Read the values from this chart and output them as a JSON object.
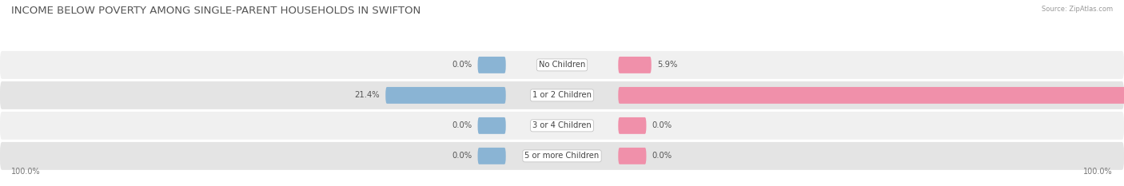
{
  "title": "INCOME BELOW POVERTY AMONG SINGLE-PARENT HOUSEHOLDS IN SWIFTON",
  "source": "Source: ZipAtlas.com",
  "categories": [
    "No Children",
    "1 or 2 Children",
    "3 or 4 Children",
    "5 or more Children"
  ],
  "single_father": [
    0.0,
    21.4,
    0.0,
    0.0
  ],
  "single_mother": [
    5.9,
    96.6,
    0.0,
    0.0
  ],
  "max_val": 100.0,
  "father_color": "#8ab4d4",
  "mother_color": "#f090aa",
  "row_bg_light": "#f0f0f0",
  "row_bg_dark": "#e4e4e4",
  "title_fontsize": 9.5,
  "label_fontsize": 7.2,
  "value_fontsize": 7.2,
  "axis_label_fontsize": 7,
  "legend_fontsize": 7.5,
  "figsize": [
    14.06,
    2.33
  ],
  "dpi": 100
}
